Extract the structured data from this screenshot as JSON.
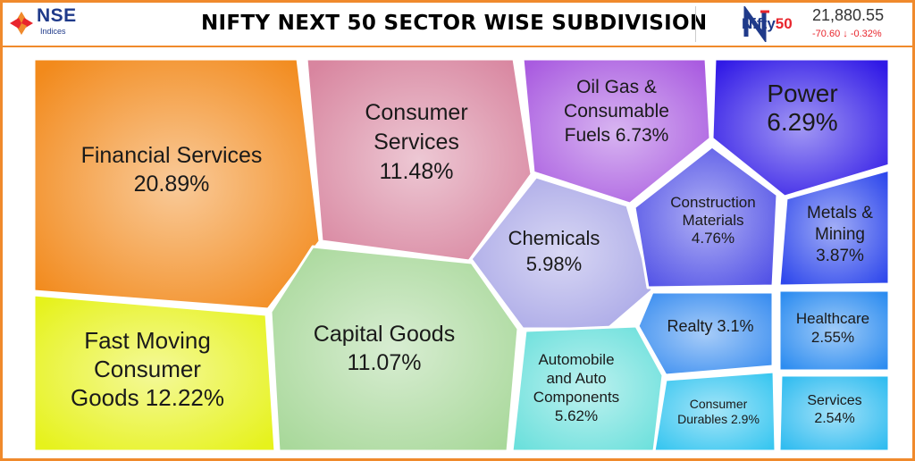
{
  "header": {
    "nse_logo_text": "NSE",
    "nse_logo_sub": "Indices",
    "title": "NIFTY NEXT 50 SECTOR WISE SUBDIVISION",
    "ticker_name_main": "Nifty",
    "ticker_name_accent": "50",
    "ticker_value": "21,880.55",
    "ticker_change": "-70.60",
    "ticker_arrow": "↓",
    "ticker_change_pct": "-0.32%"
  },
  "chart_data": {
    "type": "treemap",
    "title": "NIFTY NEXT 50 SECTOR WISE SUBDIVISION",
    "unit": "%",
    "sectors": [
      {
        "name": "Financial Services",
        "lines": [
          "Financial Services",
          "20.89%"
        ],
        "value": 20.89,
        "color": "#f28a1c"
      },
      {
        "name": "Consumer Services",
        "lines": [
          "Consumer",
          "Services",
          "11.48%"
        ],
        "value": 11.48,
        "color": "#d8859f"
      },
      {
        "name": "Oil Gas & Consumable Fuels",
        "lines": [
          "Oil Gas &",
          "Consumable",
          "Fuels 6.73%"
        ],
        "value": 6.73,
        "color": "#a95be0"
      },
      {
        "name": "Power",
        "lines": [
          "Power",
          "6.29%"
        ],
        "value": 6.29,
        "color": "#3019e6"
      },
      {
        "name": "Chemicals",
        "lines": [
          "Chemicals",
          "5.98%"
        ],
        "value": 5.98,
        "color": "#a8a6e6"
      },
      {
        "name": "Construction Materials",
        "lines": [
          "Construction",
          "Materials",
          "4.76%"
        ],
        "value": 4.76,
        "color": "#5050e6"
      },
      {
        "name": "Metals & Mining",
        "lines": [
          "Metals &",
          "Mining",
          "3.87%"
        ],
        "value": 3.87,
        "color": "#2f48ec"
      },
      {
        "name": "Fast Moving Consumer Goods",
        "lines": [
          "Fast Moving",
          "Consumer",
          "Goods 12.22%"
        ],
        "value": 12.22,
        "color": "#e6f21c"
      },
      {
        "name": "Capital Goods",
        "lines": [
          "Capital Goods",
          "11.07%"
        ],
        "value": 11.07,
        "color": "#a8d89a"
      },
      {
        "name": "Realty",
        "lines": [
          "Realty 3.1%"
        ],
        "value": 3.1,
        "color": "#3b8ef0"
      },
      {
        "name": "Healthcare",
        "lines": [
          "Healthcare",
          "2.55%"
        ],
        "value": 2.55,
        "color": "#2c8cf0"
      },
      {
        "name": "Automobile and Auto Components",
        "lines": [
          "Automobile",
          "and Auto",
          "Components",
          "5.62%"
        ],
        "value": 5.62,
        "color": "#6ce0dc"
      },
      {
        "name": "Consumer Durables",
        "lines": [
          "Consumer",
          "Durables 2.9%"
        ],
        "value": 2.9,
        "color": "#38c6f0"
      },
      {
        "name": "Services",
        "lines": [
          "Services",
          "2.54%"
        ],
        "value": 2.54,
        "color": "#30bcf0"
      }
    ]
  }
}
